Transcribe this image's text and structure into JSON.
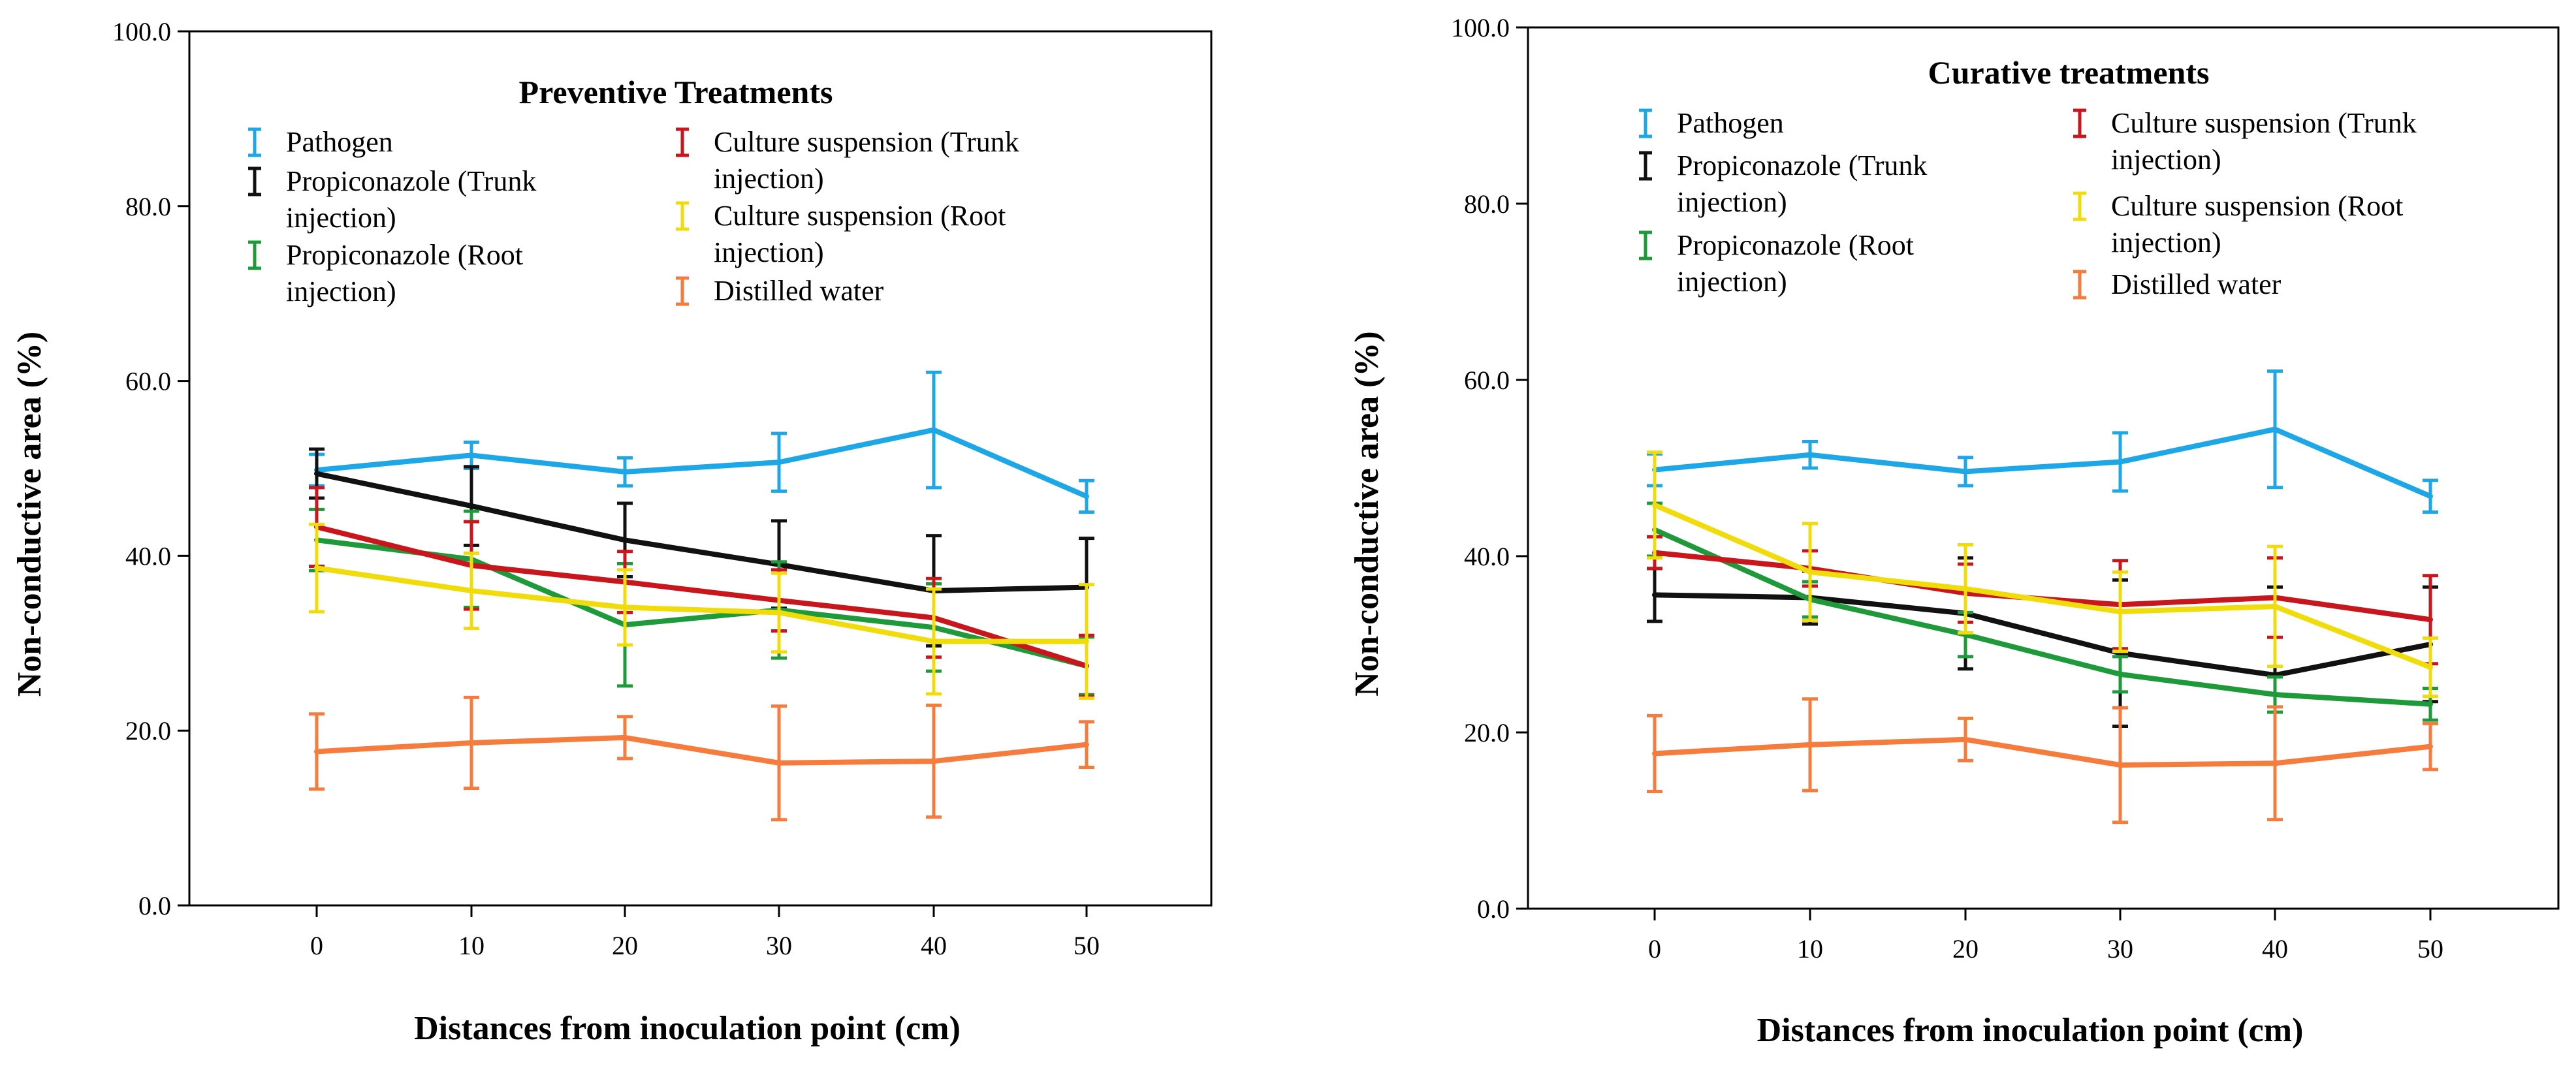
{
  "colors": {
    "Pathogen": "#1ea7e6",
    "Propiconazole (Trunk injection)": "#111111",
    "Propiconazole (Root injection)": "#1e9a3a",
    "Culture suspension (Trunk injection)": "#c8161c",
    "Culture suspension (Root injection)": "#f0dc0a",
    "Distilled water": "#f57c3c"
  },
  "chart_data": [
    {
      "type": "line",
      "title": "Preventive Treatments",
      "xlabel": "Distances from inoculation point (cm)",
      "ylabel": "Non-conductive area (%)",
      "x": [
        0,
        10,
        20,
        30,
        40,
        50
      ],
      "x_ticks": [
        "0",
        "10",
        "20",
        "30",
        "40",
        "50"
      ],
      "y_ticks": [
        "0.0",
        "20.0",
        "40.0",
        "60.0",
        "80.0",
        "100.0"
      ],
      "ylim": [
        0,
        100
      ],
      "legend": [
        {
          "name": "Pathogen",
          "lines": [
            "Pathogen"
          ]
        },
        {
          "name": "Propiconazole (Trunk injection)",
          "lines": [
            "Propiconazole (Trunk",
            "injection)"
          ]
        },
        {
          "name": "Propiconazole (Root injection)",
          "lines": [
            "Propiconazole (Root",
            "injection)"
          ]
        },
        {
          "name": "Culture suspension (Trunk injection)",
          "lines": [
            "Culture suspension (Trunk",
            "injection)"
          ]
        },
        {
          "name": "Culture suspension (Root injection)",
          "lines": [
            "Culture suspension (Root",
            "injection)"
          ]
        },
        {
          "name": "Distilled water",
          "lines": [
            "Distilled water"
          ]
        }
      ],
      "series": [
        {
          "name": "Pathogen",
          "values": [
            49.8,
            51.5,
            49.6,
            50.7,
            54.4,
            46.8
          ],
          "err": [
            1.8,
            1.5,
            1.6,
            3.3,
            6.6,
            1.8
          ]
        },
        {
          "name": "Propiconazole (Trunk injection)",
          "values": [
            49.4,
            45.7,
            41.8,
            39.0,
            36.0,
            36.4
          ],
          "err": [
            2.8,
            4.5,
            4.2,
            5.0,
            6.3,
            5.6
          ]
        },
        {
          "name": "Propiconazole (Root injection)",
          "values": [
            41.8,
            39.6,
            32.1,
            33.8,
            31.8,
            27.4
          ],
          "err": [
            3.5,
            5.5,
            7.0,
            5.5,
            5.0,
            3.3
          ]
        },
        {
          "name": "Culture suspension (Trunk injection)",
          "values": [
            43.3,
            38.9,
            37.0,
            34.9,
            32.9,
            27.4
          ],
          "err": [
            4.5,
            5.0,
            3.5,
            3.5,
            4.5,
            3.5
          ]
        },
        {
          "name": "Culture suspension (Root injection)",
          "values": [
            38.6,
            36.0,
            34.1,
            33.5,
            30.2,
            30.2
          ],
          "err": [
            5.0,
            4.3,
            4.3,
            4.5,
            6.0,
            6.5
          ]
        },
        {
          "name": "Distilled water",
          "values": [
            17.6,
            18.6,
            19.2,
            16.3,
            16.5,
            18.4
          ],
          "err": [
            4.3,
            5.2,
            2.4,
            6.5,
            6.4,
            2.6
          ]
        }
      ]
    },
    {
      "type": "line",
      "title": "Curative treatments",
      "xlabel": "Distances from inoculation point (cm)",
      "ylabel": "Non-conductive area (%)",
      "x": [
        0,
        10,
        20,
        30,
        40,
        50
      ],
      "x_ticks": [
        "0",
        "10",
        "20",
        "30",
        "40",
        "50"
      ],
      "y_ticks": [
        "0.0",
        "20.0",
        "40.0",
        "60.0",
        "80.0",
        "100.0"
      ],
      "ylim": [
        0,
        100
      ],
      "legend": [
        {
          "name": "Pathogen",
          "lines": [
            "Pathogen"
          ]
        },
        {
          "name": "Propiconazole (Trunk injection)",
          "lines": [
            "Propiconazole (Trunk",
            "injection)"
          ]
        },
        {
          "name": "Propiconazole (Root injection)",
          "lines": [
            "Propiconazole (Root",
            "injection)"
          ]
        },
        {
          "name": "Culture suspension (Trunk injection)",
          "lines": [
            "Culture suspension (Trunk",
            "injection)"
          ]
        },
        {
          "name": "Culture suspension (Root injection)",
          "lines": [
            "Culture suspension (Root",
            "injection)"
          ]
        },
        {
          "name": "Distilled water",
          "lines": [
            "Distilled water"
          ]
        }
      ],
      "series": [
        {
          "name": "Pathogen",
          "values": [
            49.8,
            51.5,
            49.6,
            50.7,
            54.4,
            46.8
          ],
          "err": [
            1.8,
            1.5,
            1.6,
            3.3,
            6.6,
            1.8
          ]
        },
        {
          "name": "Propiconazole (Trunk injection)",
          "values": [
            35.6,
            35.3,
            33.5,
            29.0,
            26.5,
            30.0
          ],
          "err": [
            3.0,
            3.0,
            6.3,
            8.3,
            10.0,
            6.5
          ]
        },
        {
          "name": "Propiconazole (Root injection)",
          "values": [
            43.0,
            35.1,
            31.1,
            26.6,
            24.3,
            23.2
          ],
          "err": [
            3.0,
            2.0,
            2.5,
            2.0,
            2.0,
            1.8
          ]
        },
        {
          "name": "Culture suspension (Trunk injection)",
          "values": [
            40.4,
            38.6,
            35.8,
            34.5,
            35.3,
            32.8
          ],
          "err": [
            1.8,
            2.0,
            3.3,
            5.0,
            4.5,
            5.0
          ]
        },
        {
          "name": "Culture suspension (Root injection)",
          "values": [
            45.8,
            38.2,
            36.3,
            33.7,
            34.3,
            27.4
          ],
          "err": [
            6.0,
            5.5,
            5.0,
            4.5,
            6.8,
            3.3
          ]
        },
        {
          "name": "Distilled water",
          "values": [
            17.6,
            18.6,
            19.2,
            16.3,
            16.5,
            18.4
          ],
          "err": [
            4.3,
            5.2,
            2.4,
            6.5,
            6.4,
            2.6
          ]
        }
      ]
    }
  ]
}
